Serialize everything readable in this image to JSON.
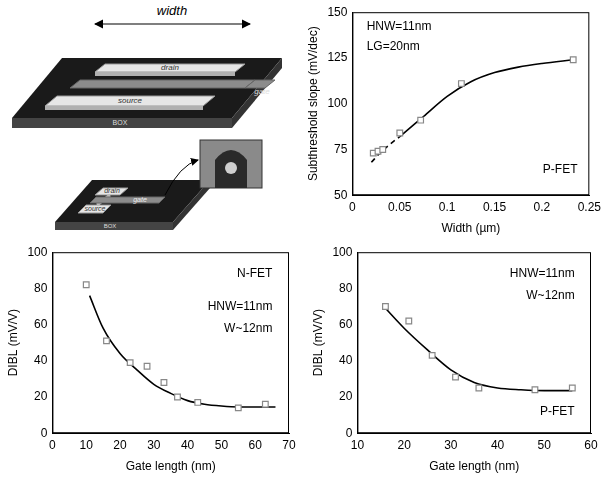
{
  "diagram": {
    "width_label": "width",
    "device_wide": {
      "drain": "drain",
      "source": "source",
      "gate": "gate",
      "box": "BOX"
    },
    "device_narrow": {
      "drain": "drain",
      "source": "source",
      "gate": "gate",
      "box": "BOX"
    }
  },
  "chart_data": [
    {
      "type": "scatter",
      "x_label": "Width (µm)",
      "y_label": "Subthreshold slope (mV/dec)",
      "xlim": [
        0,
        0.25
      ],
      "xticks": [
        0,
        0.05,
        0.1,
        0.15,
        0.2,
        0.25
      ],
      "ylim": [
        50,
        150
      ],
      "yticks": [
        50,
        75,
        100,
        125,
        150
      ],
      "grid": false,
      "annotations": [
        "HNW=11nm",
        "LG=20nm",
        "P-FET"
      ],
      "series": [
        {
          "type": "line",
          "line_style": "dashed",
          "color": "#000000",
          "x": [
            0.02,
            0.03,
            0.04,
            0.05
          ],
          "values": [
            68,
            73.5,
            78,
            82
          ]
        },
        {
          "type": "line",
          "line_style": "solid",
          "color": "#000000",
          "x": [
            0.05,
            0.075,
            0.1,
            0.125,
            0.15,
            0.175,
            0.2,
            0.233
          ],
          "values": [
            82,
            93,
            104,
            112,
            117,
            120,
            122,
            124
          ]
        },
        {
          "type": "scatter",
          "marker": "square",
          "color": "#888888",
          "x": [
            0.022,
            0.027,
            0.032,
            0.05,
            0.072,
            0.115,
            0.233
          ],
          "values": [
            73,
            74,
            75,
            84,
            91,
            111,
            124
          ]
        }
      ]
    },
    {
      "type": "scatter",
      "x_label": "Gate length (nm)",
      "y_label": "DIBL (mV/V)",
      "xlim": [
        0,
        70
      ],
      "xticks": [
        0,
        10,
        20,
        30,
        40,
        50,
        60,
        70
      ],
      "ylim": [
        0,
        100
      ],
      "yticks": [
        0,
        20,
        40,
        60,
        80,
        100
      ],
      "grid": false,
      "annotations": [
        "N-FET",
        "HNW=11nm",
        "W~12nm"
      ],
      "series": [
        {
          "type": "line",
          "line_style": "solid",
          "color": "#000000",
          "x": [
            11,
            15,
            20,
            25,
            30,
            35,
            40,
            45,
            50,
            55,
            60,
            66
          ],
          "values": [
            76,
            58,
            44,
            35,
            27,
            22,
            18,
            16,
            15,
            14.5,
            14.5,
            14.5
          ]
        },
        {
          "type": "scatter",
          "marker": "square",
          "color": "#888888",
          "x": [
            10,
            16,
            23,
            28,
            33,
            37,
            43,
            55,
            63
          ],
          "values": [
            82,
            51,
            39,
            37,
            28,
            20,
            17,
            14,
            16
          ]
        }
      ]
    },
    {
      "type": "scatter",
      "x_label": "Gate length (nm)",
      "y_label": "DIBL (mV/V)",
      "xlim": [
        10,
        60
      ],
      "xticks": [
        10,
        20,
        30,
        40,
        50,
        60
      ],
      "ylim": [
        0,
        100
      ],
      "yticks": [
        0,
        20,
        40,
        60,
        80,
        100
      ],
      "grid": false,
      "annotations": [
        "P-FET",
        "HNW=11nm",
        "W~12nm"
      ],
      "series": [
        {
          "type": "line",
          "line_style": "solid",
          "color": "#000000",
          "x": [
            16,
            20,
            25,
            30,
            35,
            40,
            45,
            50,
            56
          ],
          "values": [
            69,
            58,
            46,
            35,
            28,
            25,
            24,
            23.5,
            23.5
          ]
        },
        {
          "type": "scatter",
          "marker": "square",
          "color": "#888888",
          "x": [
            16,
            21,
            26,
            31,
            36,
            48,
            56
          ],
          "values": [
            70,
            62,
            43,
            31,
            25,
            24,
            25
          ]
        }
      ]
    }
  ]
}
